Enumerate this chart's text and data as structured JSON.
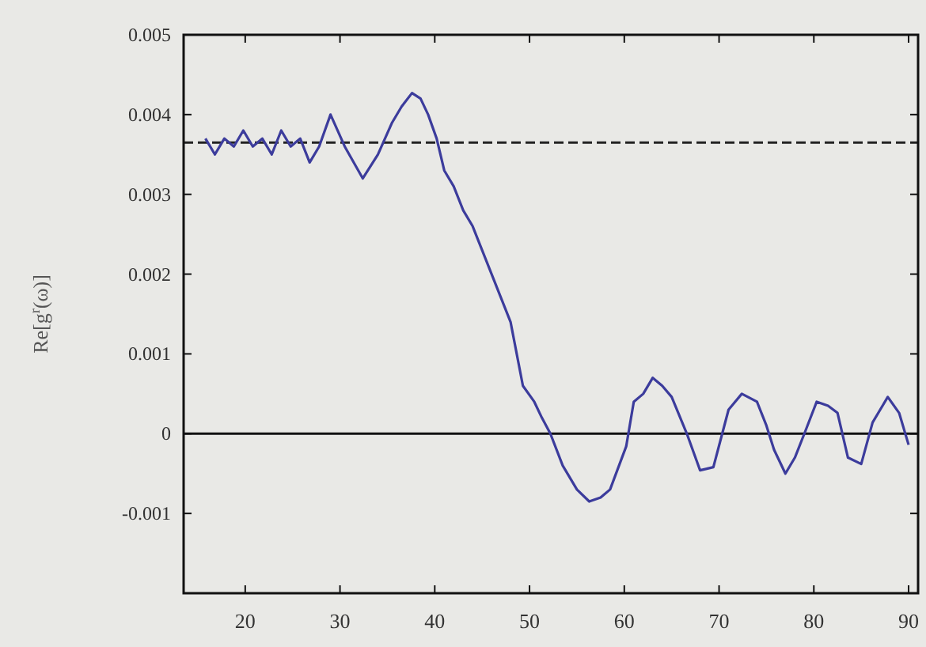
{
  "chart_data": {
    "type": "line",
    "ylabel": "Re[g$^{r}$(ω)]",
    "xlim": [
      13.5,
      91
    ],
    "xticks": [
      20,
      30,
      40,
      50,
      60,
      70,
      80,
      90
    ],
    "ylim": [
      -0.002,
      0.005
    ],
    "yticks": [
      0.005,
      0.004,
      0.003,
      0.002,
      0.001,
      0,
      -0.001,
      {
        "value": -0.002,
        "label": null
      }
    ],
    "marker": "none",
    "line_style": "solid",
    "ref_lines": [
      {
        "axis": "y",
        "value": 0.00365,
        "line_style": "dashed",
        "color": "#222222"
      },
      {
        "axis": "y",
        "value": 0,
        "line_style": "solid",
        "color": "#111111"
      }
    ],
    "series": [
      {
        "color": "#3c3c9c",
        "x": [
          15.8,
          16.8,
          17.8,
          18.8,
          19.8,
          20.8,
          21.8,
          22.8,
          23.8,
          24.8,
          25.8,
          26.8,
          27.8,
          29,
          30.5,
          32.4,
          34,
          35.5,
          36.5,
          37.6,
          38.5,
          39.3,
          40.2,
          41,
          42,
          43,
          44,
          45,
          46,
          47,
          48,
          49.3,
          50.5,
          51.3,
          52.2,
          53.5,
          55,
          56.3,
          57.5,
          58.5,
          60.2,
          61,
          62,
          63,
          64,
          65,
          66.6,
          68,
          69.4,
          71,
          72.4,
          74,
          75,
          75.8,
          77,
          78,
          79,
          80.3,
          81.5,
          82.5,
          83.6,
          85,
          86.2,
          87,
          87.8,
          89,
          90
        ],
        "values": [
          0.0037,
          0.0035,
          0.0037,
          0.0036,
          0.0038,
          0.0036,
          0.0037,
          0.0035,
          0.0038,
          0.0036,
          0.0037,
          0.0034,
          0.0036,
          0.004,
          0.0036,
          0.0032,
          0.0035,
          0.0039,
          0.0041,
          0.00427,
          0.0042,
          0.004,
          0.0037,
          0.0033,
          0.0031,
          0.0028,
          0.0026,
          0.0023,
          0.002,
          0.0017,
          0.0014,
          0.0006,
          0.0004,
          0.0002,
          0,
          -0.0004,
          -0.0007,
          -0.00085,
          -0.0008,
          -0.0007,
          -0.00016,
          0.0004,
          0.0005,
          0.0007,
          0.0006,
          0.00046,
          0,
          -0.00046,
          -0.00042,
          0.0003,
          0.0005,
          0.0004,
          0.0001,
          -0.0002,
          -0.0005,
          -0.0003,
          0,
          0.0004,
          0.00035,
          0.00026,
          -0.0003,
          -0.00038,
          0.00014,
          0.0003,
          0.00046,
          0.00026,
          -0.00014
        ]
      }
    ]
  }
}
